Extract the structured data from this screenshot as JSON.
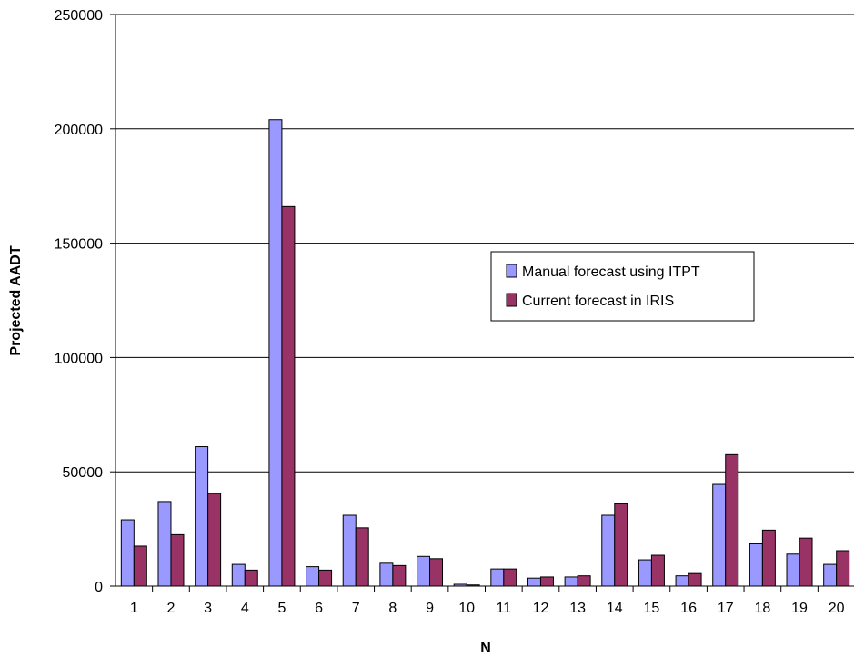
{
  "chart_data": {
    "type": "bar",
    "title": "",
    "xlabel": "N",
    "ylabel": "Projected AADT",
    "ylim": [
      0,
      250000
    ],
    "yticks": [
      0,
      50000,
      100000,
      150000,
      200000,
      250000
    ],
    "ytick_labels": [
      "0",
      "50000",
      "100000",
      "150000",
      "200000",
      "250000"
    ],
    "grid": "horizontal",
    "legend_position": "right",
    "categories": [
      "1",
      "2",
      "3",
      "4",
      "5",
      "6",
      "7",
      "8",
      "9",
      "10",
      "11",
      "12",
      "13",
      "14",
      "15",
      "16",
      "17",
      "18",
      "19",
      "20"
    ],
    "series": [
      {
        "name": "Manual forecast using ITPT",
        "color": "#9999ff",
        "values": [
          29000,
          37000,
          61000,
          9500,
          204000,
          8500,
          31000,
          10000,
          13000,
          800,
          7500,
          3500,
          4000,
          31000,
          11500,
          4500,
          44500,
          18500,
          14000,
          9500
        ]
      },
      {
        "name": "Current forecast in IRIS",
        "color": "#993366",
        "values": [
          17500,
          22500,
          40500,
          7000,
          166000,
          7000,
          25500,
          9000,
          12000,
          500,
          7500,
          4000,
          4500,
          36000,
          13500,
          5500,
          57500,
          24500,
          21000,
          15500
        ]
      }
    ]
  }
}
